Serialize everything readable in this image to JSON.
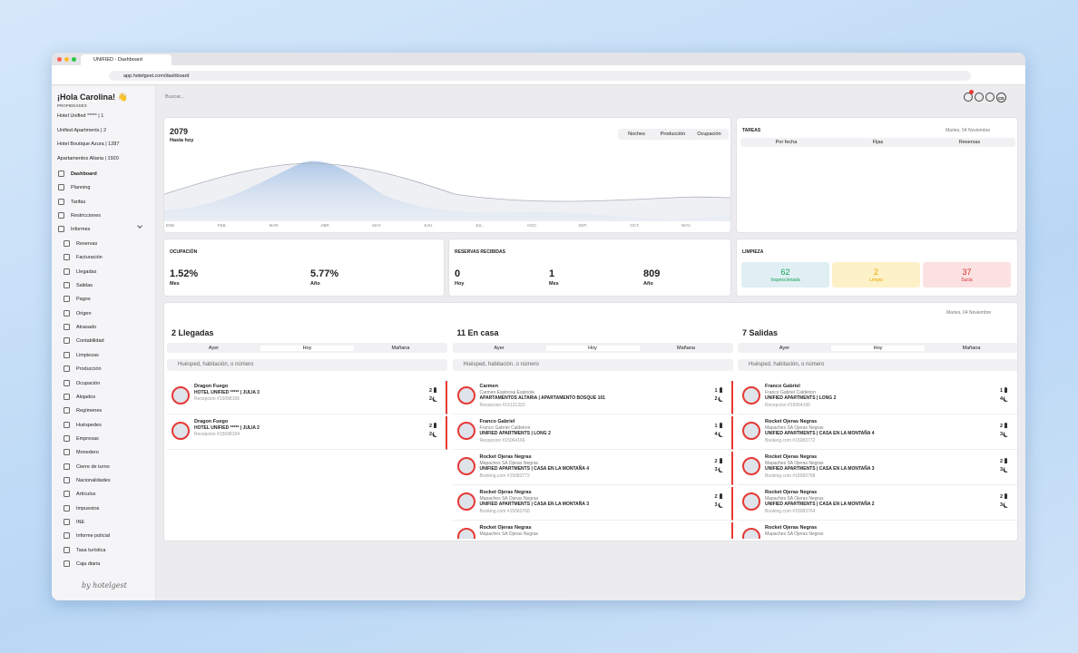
{
  "browser": {
    "tab": "UNIFIED - Dashboard",
    "url": "app.hotelgest.com/dashboard"
  },
  "sidebar": {
    "greeting": "¡Hola Carolina! 👋",
    "properties_label": "PROPIEDADES",
    "properties": [
      "Hotel Unified ***** | 1",
      "Unified Apartments | 2",
      "Hotel Boutique Azura | 1287",
      "Apartamentos Altaria | 1920"
    ],
    "menu": [
      "Dashboard",
      "Planning",
      "Tarifas",
      "Restricciones",
      "Informes"
    ],
    "submenu": [
      "Reservas",
      "Facturación",
      "Llegadas",
      "Salidas",
      "Pagos",
      "Origen",
      "Atrasado",
      "Contabilidad",
      "Limpiezas",
      "Producción",
      "Ocupación",
      "Alojados",
      "Regímenes",
      "Huéspedes",
      "Empresas",
      "Monedero",
      "Cierre de turno",
      "Nacionalidades",
      "Artículos",
      "Impuestos",
      "INE",
      "Informe policial",
      "Tasa turística",
      "Caja diaria"
    ],
    "footer": "by hotelgest"
  },
  "topbar": {
    "search": "Buscar...",
    "avatar": "CD"
  },
  "revenue": {
    "value": 2079,
    "caption": "Hasta hoy",
    "tabs": [
      "Noches",
      "Producción",
      "Ocupación"
    ],
    "months": [
      "ENE.",
      "FEB.",
      "MAR.",
      "ABR.",
      "MAY.",
      "JUN.",
      "JUL.",
      "AGO.",
      "SEP.",
      "OCT.",
      "NOV.",
      "DIC."
    ]
  },
  "tasks": {
    "title": "TAREAS",
    "date": "Martes, 04 Noviembre",
    "tabs": [
      "Por fecha",
      "Fijas",
      "Reservas"
    ]
  },
  "occupancy": {
    "title": "OCUPACIÓN",
    "stats": [
      {
        "value": "1.52%",
        "label": "Mes"
      },
      {
        "value": "5.77%",
        "label": "Año"
      }
    ]
  },
  "bookings": {
    "title": "RESERVAS RECIBIDAS",
    "stats": [
      {
        "value": 0,
        "label": "Hoy"
      },
      {
        "value": 1,
        "label": "Mes"
      },
      {
        "value": 809,
        "label": "Año"
      }
    ]
  },
  "cleaning": {
    "title": "LIMPIEZA",
    "stats": [
      {
        "value": 62,
        "label": "Inspeccionada"
      },
      {
        "value": 2,
        "label": "Limpia"
      },
      {
        "value": 37,
        "label": "Sucia"
      }
    ]
  },
  "panel": {
    "date": "Martes, 04 Noviembre",
    "tabs": [
      "Ayer",
      "Hoy",
      "Mañana"
    ],
    "search": "Huésped, habitación, o número",
    "columns": [
      {
        "title": "2 Llegadas",
        "items": [
          {
            "name": "Dragon Fuego",
            "unit": "HOTEL UNIFIED ***** | JULIA 3",
            "ref": "Recepcion #15098106",
            "adults": 2,
            "nights": 2
          },
          {
            "name": "Dragon Fuego",
            "unit": "HOTEL UNIFIED ***** | JULIA 2",
            "ref": "Recepcion #15098104",
            "adults": 2,
            "nights": 2
          }
        ]
      },
      {
        "title": "11 En casa",
        "items": [
          {
            "name": "Carmen",
            "company": "Carmen Espinosa Espinola",
            "unit": "APARTAMENTOS ALTARIA | APARTAMENTO BOSQUE 101",
            "ref": "Recepcion #15121323",
            "adults": 1,
            "nights": 2
          },
          {
            "name": "Franco Gabriel",
            "company": "Franco Gabriel Caldeiron",
            "unit": "UNIFIED APARTMENTS | LONG 2",
            "ref": "Recepcion #15064166",
            "adults": 1,
            "nights": 4
          },
          {
            "name": "Rocket Ojeras Negras",
            "company": "Mapaches SA Ojeras Negras",
            "unit": "UNIFIED APARTMENTS | CASA EN LA MONTAÑA 4",
            "ref": "Booking.com #15083772",
            "adults": 2,
            "nights": 3
          },
          {
            "name": "Rocket Ojeras Negras",
            "company": "Mapaches SA Ojeras Negras",
            "unit": "UNIFIED APARTMENTS | CASA EN LA MONTAÑA 3",
            "ref": "Booking.com #15083768",
            "adults": 2,
            "nights": 3
          },
          {
            "name": "Rocket Ojeras Negras",
            "company": "Mapaches SA Ojeras Negras"
          }
        ]
      },
      {
        "title": "7 Salidas",
        "items": [
          {
            "name": "Franco Gabriel",
            "company": "Franco Gabriel Caldeiron",
            "unit": "UNIFIED APARTMENTS | LONG 2",
            "ref": "Recepcion #15064166",
            "adults": 1,
            "nights": 4
          },
          {
            "name": "Rocket Ojeras Negras",
            "company": "Mapaches SA Ojeras Negras",
            "unit": "UNIFIED APARTMENTS | CASA EN LA MONTAÑA 4",
            "ref": "Booking.com #15083772",
            "adults": 2,
            "nights": 3
          },
          {
            "name": "Rocket Ojeras Negras",
            "company": "Mapaches SA Ojeras Negras",
            "unit": "UNIFIED APARTMENTS | CASA EN LA MONTAÑA 3",
            "ref": "Booking.com #15083768",
            "adults": 2,
            "nights": 3
          },
          {
            "name": "Rocket Ojeras Negras",
            "company": "Mapaches SA Ojeras Negras",
            "unit": "UNIFIED APARTMENTS | CASA EN LA MONTAÑA 2",
            "ref": "Booking.com #15083764",
            "adults": 2,
            "nights": 3
          },
          {
            "name": "Rocket Ojeras Negras",
            "company": "Mapaches SA Ojeras Negras"
          }
        ]
      }
    ]
  }
}
